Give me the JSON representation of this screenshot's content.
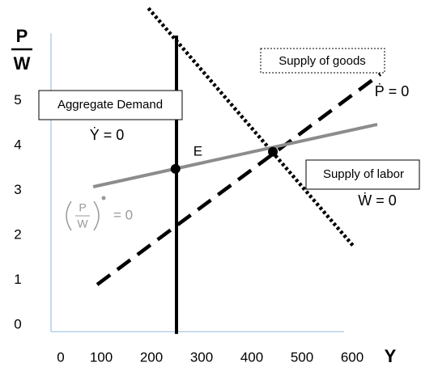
{
  "chart_data": {
    "type": "line",
    "y_label": {
      "numerator": "P",
      "denominator": "W"
    },
    "x_label": "Y",
    "xlim": [
      0,
      600
    ],
    "ylim": [
      -0.15,
      6.5
    ],
    "xticks": [
      0,
      100,
      200,
      300,
      400,
      500,
      600
    ],
    "yticks": [
      0,
      1,
      2,
      3,
      4,
      5
    ],
    "axis_color": "#9dc3e6",
    "series": [
      {
        "color": "#000000",
        "style": "solid",
        "x": [
          250,
          250
        ],
        "y": [
          6.45,
          -0.2
        ]
      },
      {
        "color": "#000000",
        "style": "dotted",
        "x": [
          194,
          603
        ],
        "y": [
          7.06,
          1.75
        ]
      },
      {
        "color": "#000000",
        "style": "dashed",
        "x": [
          92,
          656
        ],
        "y": [
          0.9,
          5.59
        ]
      },
      {
        "color": "#8c8c8c",
        "style": "solid",
        "x": [
          84,
          650
        ],
        "y": [
          3.08,
          4.47
        ]
      }
    ],
    "points": [
      {
        "x": 248,
        "y": 3.48,
        "label": "E"
      },
      {
        "x": 442,
        "y": 3.86
      }
    ],
    "annotations": {
      "aggregate_demand": "Aggregate Demand",
      "y_dot": "Ẏ =  0",
      "supply_goods": "Supply of goods",
      "p_dot": "Ṗ =  0",
      "supply_labor": "Supply of labor",
      "w_dot": "Ẇ =  0",
      "real_wage": {
        "numerator": "P",
        "denominator": "W",
        "text": "= 0"
      }
    }
  }
}
